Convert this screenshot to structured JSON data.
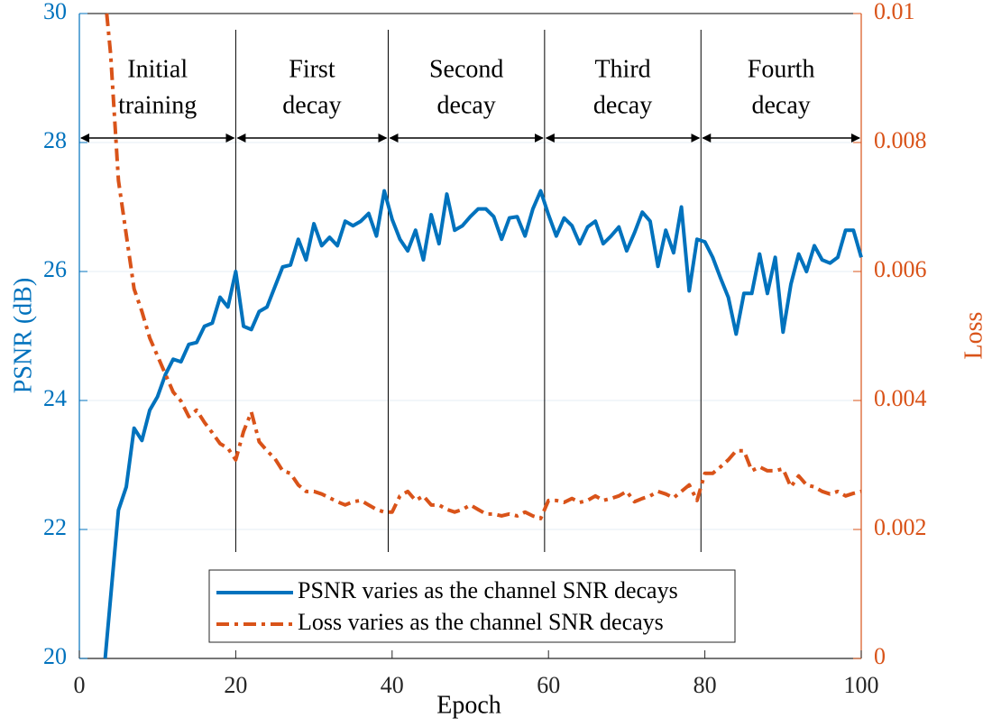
{
  "chart_data": {
    "type": "line",
    "xlabel": "Epoch",
    "ylabel": "PSNR (dB)",
    "y2label": "Loss",
    "xlim": [
      0,
      100
    ],
    "xticks": [
      0,
      20,
      40,
      60,
      80,
      100
    ],
    "ylim": [
      20,
      30
    ],
    "yticks": [
      20,
      22,
      24,
      26,
      28,
      30
    ],
    "y2lim": [
      0,
      0.01
    ],
    "y2ticks": [
      0,
      0.002,
      0.004,
      0.006,
      0.008,
      0.01
    ],
    "grid": true,
    "legend": "lower center",
    "phases": [
      {
        "label": [
          "Initial",
          "training"
        ],
        "start": 0,
        "end": 20
      },
      {
        "label": [
          "First",
          "decay"
        ],
        "start": 20,
        "end": 39.5
      },
      {
        "label": [
          "Second",
          "decay"
        ],
        "start": 39.5,
        "end": 59.5
      },
      {
        "label": [
          "Third",
          "decay"
        ],
        "start": 59.5,
        "end": 79.5
      },
      {
        "label": [
          "Fourth",
          "decay"
        ],
        "start": 79.5,
        "end": 100
      }
    ],
    "series": [
      {
        "name": "PSNR varies as the channel SNR decays",
        "color": "#0072bd",
        "axis": "y",
        "style": "solid",
        "x": [
          3.3,
          5,
          6,
          7,
          8,
          9,
          10,
          11,
          12,
          13,
          14,
          15,
          16,
          17,
          18,
          19,
          20,
          21,
          22,
          23,
          24,
          25,
          26,
          27,
          28,
          29,
          30,
          31,
          32,
          33,
          34,
          35,
          36,
          37,
          38,
          39,
          40,
          41,
          42,
          43,
          44,
          45,
          46,
          47,
          48,
          49,
          50,
          51,
          52,
          53,
          54,
          55,
          56,
          57,
          58,
          59,
          60,
          61,
          62,
          63,
          64,
          65,
          66,
          67,
          68,
          69,
          70,
          71,
          72,
          73,
          74,
          75,
          76,
          77,
          78,
          79,
          80,
          81,
          82,
          83,
          84,
          85,
          86,
          87,
          88,
          89,
          90,
          91,
          92,
          93,
          94,
          95,
          96,
          97,
          98,
          99,
          100
        ],
        "values": [
          20,
          22.3,
          22.66,
          23.57,
          23.38,
          23.85,
          24.06,
          24.4,
          24.64,
          24.6,
          24.87,
          24.9,
          25.15,
          25.2,
          25.6,
          25.45,
          26.0,
          25.15,
          25.1,
          25.38,
          25.45,
          25.76,
          26.07,
          26.1,
          26.5,
          26.18,
          26.74,
          26.4,
          26.53,
          26.4,
          26.78,
          26.71,
          26.78,
          26.9,
          26.55,
          27.25,
          26.81,
          26.5,
          26.32,
          26.64,
          26.18,
          26.88,
          26.43,
          27.2,
          26.64,
          26.71,
          26.85,
          26.97,
          26.97,
          26.85,
          26.5,
          26.83,
          26.85,
          26.55,
          26.97,
          27.25,
          26.88,
          26.55,
          26.83,
          26.71,
          26.43,
          26.69,
          26.78,
          26.43,
          26.55,
          26.69,
          26.32,
          26.6,
          26.92,
          26.78,
          26.08,
          26.64,
          26.29,
          27.0,
          25.7,
          26.5,
          26.46,
          26.22,
          25.9,
          25.6,
          25.03,
          25.66,
          25.66,
          26.27,
          25.66,
          26.22,
          25.06,
          25.8,
          26.27,
          26.0,
          26.4,
          26.18,
          26.13,
          26.22,
          26.64,
          26.64,
          26.22
        ]
      },
      {
        "name": "Loss varies as the channel SNR decays",
        "color": "#d95319",
        "axis": "y2",
        "style": "dashdot",
        "x": [
          3.5,
          4,
          5,
          6,
          7,
          8,
          9,
          10,
          11,
          12,
          13,
          14,
          15,
          16,
          17,
          18,
          19,
          20,
          21,
          22,
          23,
          24,
          25,
          26,
          27,
          28,
          29,
          30,
          31,
          32,
          33,
          34,
          35,
          36,
          37,
          38,
          39,
          40,
          41,
          42,
          43,
          44,
          45,
          46,
          47,
          48,
          49,
          50,
          51,
          52,
          53,
          54,
          55,
          56,
          57,
          58,
          59,
          60,
          61,
          62,
          63,
          64,
          65,
          66,
          67,
          68,
          69,
          70,
          71,
          72,
          73,
          74,
          75,
          76,
          77,
          78,
          79,
          80,
          81,
          82,
          83,
          84,
          85,
          86,
          87,
          88,
          89,
          90,
          91,
          92,
          93,
          94,
          95,
          96,
          97,
          98,
          99,
          100
        ],
        "values": [
          0.01,
          0.00937,
          0.00741,
          0.00657,
          0.00573,
          0.00538,
          0.00497,
          0.00469,
          0.00441,
          0.00413,
          0.00399,
          0.00375,
          0.00385,
          0.00366,
          0.0035,
          0.00333,
          0.00326,
          0.00308,
          0.00352,
          0.00382,
          0.00336,
          0.00322,
          0.0031,
          0.00291,
          0.00287,
          0.00269,
          0.00259,
          0.00259,
          0.00255,
          0.00249,
          0.00243,
          0.00238,
          0.00243,
          0.00245,
          0.00238,
          0.00231,
          0.00227,
          0.00227,
          0.00252,
          0.00259,
          0.00245,
          0.00252,
          0.00238,
          0.00238,
          0.00231,
          0.00227,
          0.00231,
          0.00238,
          0.00231,
          0.00224,
          0.00224,
          0.00221,
          0.00224,
          0.00221,
          0.00227,
          0.00221,
          0.00217,
          0.00245,
          0.00245,
          0.00242,
          0.00248,
          0.00242,
          0.00245,
          0.00252,
          0.00245,
          0.00248,
          0.00252,
          0.00259,
          0.00243,
          0.00248,
          0.00252,
          0.00259,
          0.00255,
          0.00249,
          0.00259,
          0.00269,
          0.00245,
          0.00287,
          0.00287,
          0.00297,
          0.00308,
          0.00322,
          0.00322,
          0.00291,
          0.00297,
          0.00291,
          0.00291,
          0.00294,
          0.00266,
          0.00283,
          0.00269,
          0.00266,
          0.00259,
          0.00255,
          0.00259,
          0.00252,
          0.00256,
          0.00259
        ]
      }
    ]
  }
}
